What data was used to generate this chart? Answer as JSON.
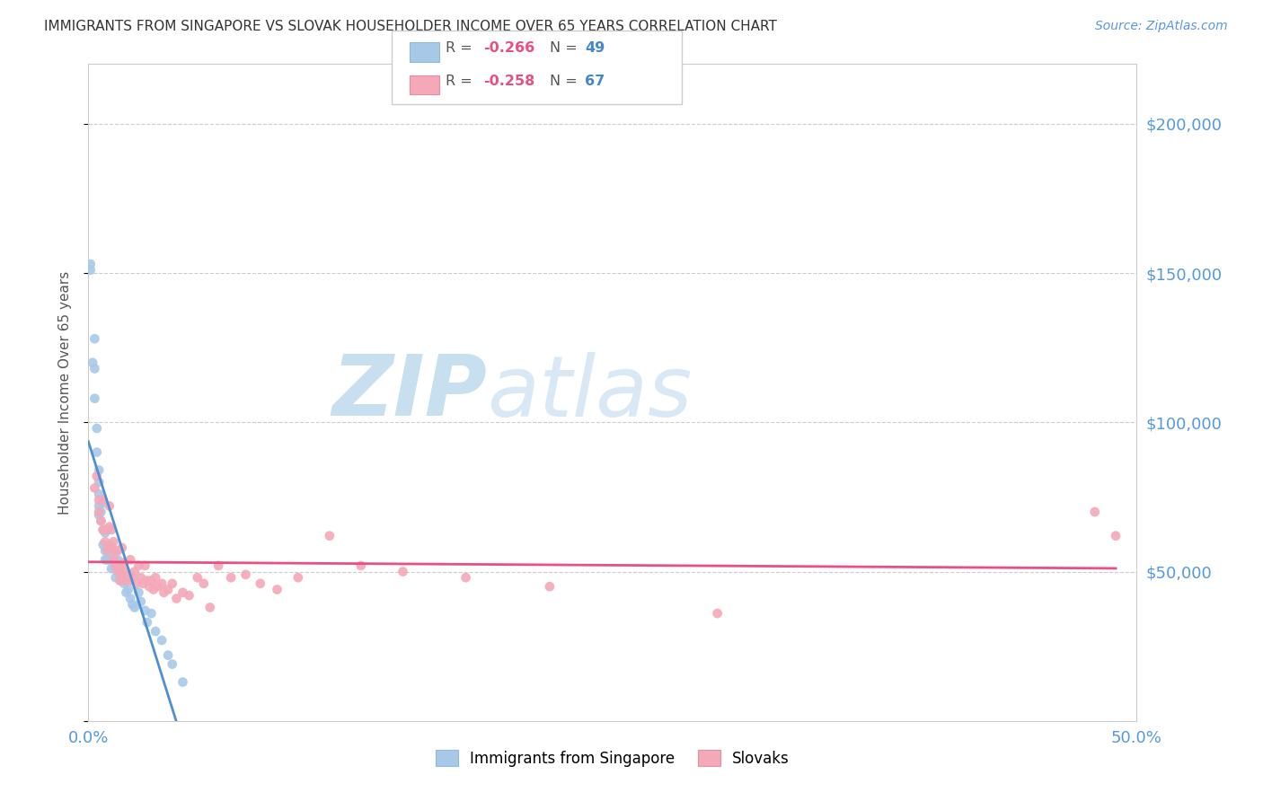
{
  "title": "IMMIGRANTS FROM SINGAPORE VS SLOVAK HOUSEHOLDER INCOME OVER 65 YEARS CORRELATION CHART",
  "source": "Source: ZipAtlas.com",
  "ylabel": "Householder Income Over 65 years",
  "xlim": [
    0.0,
    0.5
  ],
  "ylim": [
    0,
    220000
  ],
  "yticks": [
    0,
    50000,
    100000,
    150000,
    200000
  ],
  "ytick_labels": [
    "",
    "$50,000",
    "$100,000",
    "$150,000",
    "$200,000"
  ],
  "xticks": [
    0.0,
    0.1,
    0.2,
    0.3,
    0.4,
    0.5
  ],
  "xtick_labels": [
    "0.0%",
    "",
    "",
    "",
    "",
    "50.0%"
  ],
  "grid_color": "#cccccc",
  "background_color": "#ffffff",
  "singapore_color": "#a8c8e8",
  "slovak_color": "#f4a8b8",
  "singapore_line_color": "#5090d0",
  "slovak_line_color": "#e85080",
  "singapore_dashed_color": "#b0c8e0",
  "watermark_zip_color": "#c8dff0",
  "watermark_atlas_color": "#c8dff0",
  "singapore_x": [
    0.001,
    0.001,
    0.002,
    0.003,
    0.003,
    0.003,
    0.004,
    0.004,
    0.005,
    0.005,
    0.005,
    0.005,
    0.005,
    0.006,
    0.006,
    0.007,
    0.007,
    0.007,
    0.008,
    0.008,
    0.008,
    0.009,
    0.009,
    0.01,
    0.01,
    0.011,
    0.011,
    0.012,
    0.013,
    0.013,
    0.014,
    0.015,
    0.016,
    0.017,
    0.018,
    0.019,
    0.02,
    0.021,
    0.022,
    0.024,
    0.025,
    0.027,
    0.028,
    0.03,
    0.032,
    0.035,
    0.038,
    0.04,
    0.045
  ],
  "singapore_y": [
    153000,
    151000,
    120000,
    128000,
    118000,
    108000,
    98000,
    90000,
    84000,
    80000,
    76000,
    72000,
    69000,
    70000,
    67000,
    73000,
    64000,
    59000,
    63000,
    57000,
    54000,
    64000,
    54000,
    59000,
    54000,
    51000,
    57000,
    54000,
    51000,
    48000,
    54000,
    49000,
    47000,
    46000,
    43000,
    44000,
    41000,
    39000,
    38000,
    43000,
    40000,
    37000,
    33000,
    36000,
    30000,
    27000,
    22000,
    19000,
    13000
  ],
  "slovak_x": [
    0.003,
    0.004,
    0.005,
    0.005,
    0.006,
    0.007,
    0.007,
    0.008,
    0.008,
    0.009,
    0.01,
    0.01,
    0.011,
    0.011,
    0.012,
    0.012,
    0.013,
    0.013,
    0.014,
    0.014,
    0.015,
    0.015,
    0.016,
    0.016,
    0.017,
    0.017,
    0.018,
    0.019,
    0.02,
    0.02,
    0.021,
    0.022,
    0.023,
    0.024,
    0.025,
    0.026,
    0.027,
    0.028,
    0.029,
    0.03,
    0.031,
    0.032,
    0.033,
    0.035,
    0.036,
    0.038,
    0.04,
    0.042,
    0.045,
    0.048,
    0.052,
    0.055,
    0.058,
    0.062,
    0.068,
    0.075,
    0.082,
    0.09,
    0.1,
    0.115,
    0.13,
    0.15,
    0.18,
    0.22,
    0.3,
    0.48,
    0.49
  ],
  "slovak_y": [
    78000,
    82000,
    74000,
    70000,
    67000,
    64000,
    74000,
    64000,
    60000,
    57000,
    72000,
    65000,
    64000,
    58000,
    60000,
    54000,
    57000,
    52000,
    57000,
    50000,
    52000,
    47000,
    58000,
    50000,
    53000,
    47000,
    50000,
    48000,
    54000,
    47000,
    48000,
    50000,
    46000,
    52000,
    48000,
    46000,
    52000,
    47000,
    45000,
    47000,
    44000,
    48000,
    45000,
    46000,
    43000,
    44000,
    46000,
    41000,
    43000,
    42000,
    48000,
    46000,
    38000,
    52000,
    48000,
    49000,
    46000,
    44000,
    48000,
    62000,
    52000,
    50000,
    48000,
    45000,
    36000,
    70000,
    62000
  ]
}
